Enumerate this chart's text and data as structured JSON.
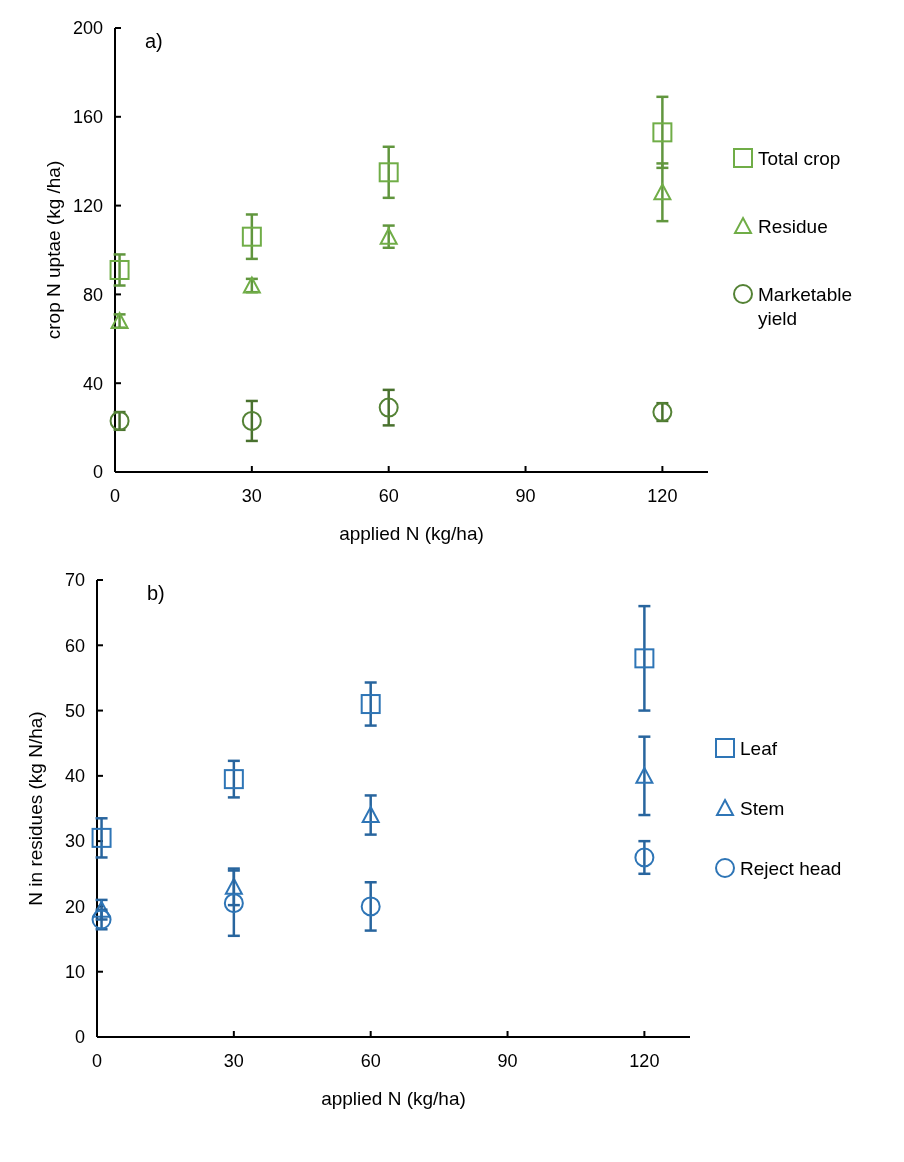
{
  "chart_data": [
    {
      "type": "scatter",
      "xlabel": "applied N  (kg/ha)",
      "ylabel": "crop N uptae (kg /ha)",
      "annotations": [
        "a)"
      ],
      "x": [
        1,
        30,
        60,
        120
      ],
      "xlim": [
        0,
        130
      ],
      "xticks": [
        0,
        30,
        60,
        90,
        120
      ],
      "ylim": [
        0,
        200
      ],
      "yticks": [
        0,
        40,
        80,
        120,
        160,
        200
      ],
      "grid": false,
      "legend": "right",
      "series": [
        {
          "name": "Total crop",
          "color": "#70ad47",
          "marker": "square",
          "values": [
            91,
            106,
            135,
            153
          ],
          "errors": [
            7,
            10,
            11.5,
            16
          ]
        },
        {
          "name": "Residue",
          "color": "#70ad47",
          "marker": "triangle",
          "values": [
            68,
            84,
            106,
            126
          ],
          "errors": [
            3,
            3,
            5,
            13
          ]
        },
        {
          "name": "Marketable yield",
          "color": "#548235",
          "marker": "circle",
          "values": [
            23,
            23,
            29,
            27
          ],
          "errors": [
            4,
            9,
            8,
            4
          ]
        }
      ]
    },
    {
      "type": "scatter",
      "xlabel": "applied N (kg/ha)",
      "ylabel": "N in residues  (kg N/ha)",
      "annotations": [
        "b)"
      ],
      "x": [
        1,
        30,
        60,
        120
      ],
      "xlim": [
        0,
        130
      ],
      "xticks": [
        0,
        30,
        60,
        90,
        120
      ],
      "ylim": [
        0,
        70
      ],
      "yticks": [
        0,
        10,
        20,
        30,
        40,
        50,
        60,
        70
      ],
      "grid": false,
      "legend": "right",
      "series": [
        {
          "name": "Leaf",
          "color": "#2e75b6",
          "marker": "square",
          "values": [
            30.5,
            39.5,
            51,
            58
          ],
          "errors": [
            3,
            2.8,
            3.3,
            8
          ]
        },
        {
          "name": "Stem",
          "color": "#2e75b6",
          "marker": "triangle",
          "values": [
            19.5,
            23,
            34,
            40
          ],
          "errors": [
            1.5,
            2.8,
            3,
            6
          ]
        },
        {
          "name": "Reject head",
          "color": "#2e75b6",
          "marker": "circle",
          "values": [
            18,
            20.5,
            20,
            27.5
          ],
          "errors": [
            1.5,
            5,
            3.7,
            2.5
          ]
        }
      ]
    }
  ]
}
